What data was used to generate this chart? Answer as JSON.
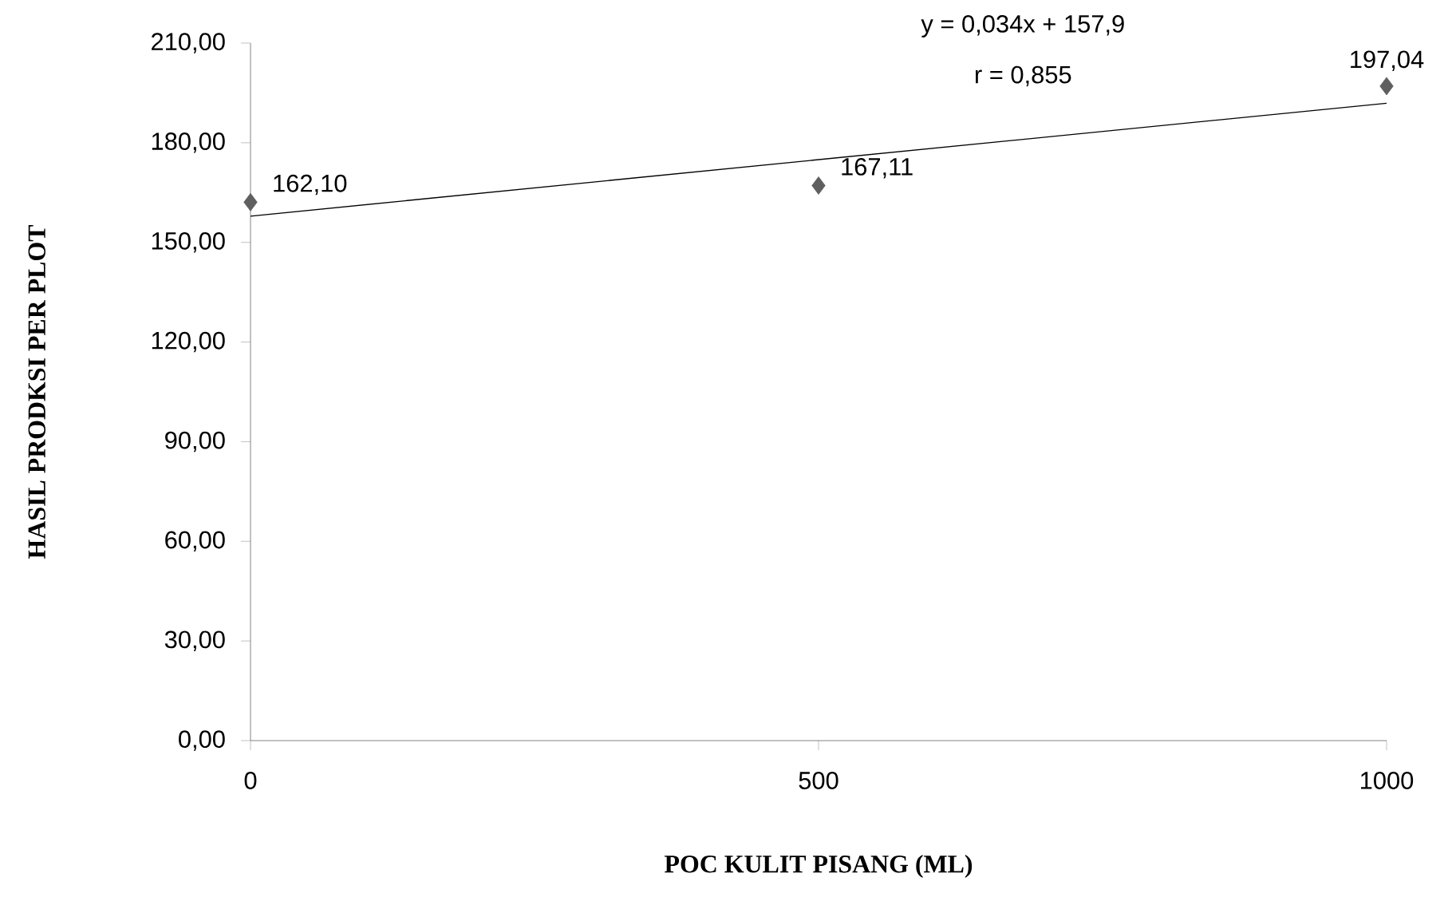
{
  "chart_data": {
    "type": "scatter",
    "xlabel": "POC KULIT PISANG (ML)",
    "ylabel": "HASIL PRODKSI PER PLOT",
    "x": [
      0,
      500,
      1000
    ],
    "series": [
      {
        "marker": "diamond",
        "color": "#5f5f5f",
        "values": [
          162.1,
          167.11,
          197.04
        ],
        "value_labels": [
          "162,10",
          "167,11",
          "197,04"
        ]
      },
      {
        "type": "line",
        "marker": "none",
        "color": "#000000",
        "x": [
          0,
          1000
        ],
        "values": [
          157.9,
          191.9
        ]
      }
    ],
    "annotations": [
      "y = 0,034x + 157,9",
      "r = 0,855"
    ],
    "xlim": [
      0,
      1000
    ],
    "xticks": [
      0,
      500,
      1000
    ],
    "ylim": [
      0,
      210
    ],
    "yticks": [
      {
        "value": 0,
        "label": "0,00"
      },
      {
        "value": 30,
        "label": "30,00"
      },
      {
        "value": 60,
        "label": "60,00"
      },
      {
        "value": 90,
        "label": "90,00"
      },
      {
        "value": 120,
        "label": "120,00"
      },
      {
        "value": 150,
        "label": "150,00"
      },
      {
        "value": 180,
        "label": "180,00"
      },
      {
        "value": 210,
        "label": "210,00"
      }
    ],
    "grid": false
  }
}
